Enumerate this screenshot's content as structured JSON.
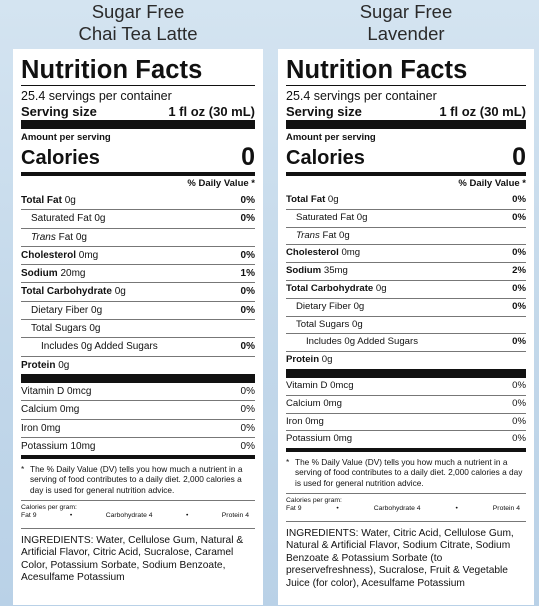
{
  "labels": [
    {
      "product_name": "Sugar Free\nChai Tea Latte",
      "title": "Nutrition Facts",
      "servings": "25.4 servings per container",
      "serving_size_label": "Serving size",
      "serving_size_value": "1 fl oz (30 mL)",
      "amount_per_serving": "Amount per serving",
      "calories_label": "Calories",
      "calories_value": "0",
      "dv_header": "% Daily Value *",
      "nutrients": [
        {
          "b": "Total Fat",
          "r": " 0g",
          "pct": "0%",
          "indent": 0
        },
        {
          "b": "",
          "r": "Saturated Fat 0g",
          "pct": "0%",
          "indent": 1
        },
        {
          "i": "Trans",
          "r": " Fat 0g",
          "pct": "",
          "indent": 1
        },
        {
          "b": "Cholesterol",
          "r": " 0mg",
          "pct": "0%",
          "indent": 0
        },
        {
          "b": "Sodium",
          "r": " 20mg",
          "pct": "1%",
          "indent": 0
        },
        {
          "b": "Total Carbohydrate",
          "r": " 0g",
          "pct": "0%",
          "indent": 0
        },
        {
          "b": "",
          "r": "Dietary Fiber 0g",
          "pct": "0%",
          "indent": 1
        },
        {
          "b": "",
          "r": "Total Sugars 0g",
          "pct": "",
          "indent": 1
        },
        {
          "b": "",
          "r": "Includes 0g Added Sugars",
          "pct": "0%",
          "indent": 2
        },
        {
          "b": "Protein",
          "r": " 0g",
          "pct": "",
          "indent": 0
        }
      ],
      "vitamins": [
        {
          "name": "Vitamin D 0mcg",
          "pct": "0%"
        },
        {
          "name": "Calcium 0mg",
          "pct": "0%"
        },
        {
          "name": "Iron 0mg",
          "pct": "0%"
        },
        {
          "name": "Potassium 10mg",
          "pct": "0%"
        }
      ],
      "footnote": "The % Daily Value (DV) tells you how much a nutrient in a serving of food contributes to a daily diet. 2,000 calories a day is used for general nutrition advice.",
      "calories_per_gram_label": "Calories per gram:",
      "calories_per_gram": [
        "Fat 9",
        "•",
        "Carbohydrate 4",
        "•",
        "Protein 4"
      ],
      "ingredients": "INGREDIENTS: Water, Cellulose Gum, Natural & Artificial Flavor, Citric Acid, Sucralose, Caramel Color, Potassium Sorbate, Sodium Benzoate, Acesulfame Potassium"
    },
    {
      "product_name": "Sugar Free\nLavender",
      "title": "Nutrition Facts",
      "servings": "25.4 servings per container",
      "serving_size_label": "Serving size",
      "serving_size_value": "1 fl oz (30 mL)",
      "amount_per_serving": "Amount per serving",
      "calories_label": "Calories",
      "calories_value": "0",
      "dv_header": "% Daily Value *",
      "nutrients": [
        {
          "b": "Total Fat",
          "r": " 0g",
          "pct": "0%",
          "indent": 0
        },
        {
          "b": "",
          "r": "Saturated Fat 0g",
          "pct": "0%",
          "indent": 1
        },
        {
          "i": "Trans",
          "r": " Fat 0g",
          "pct": "",
          "indent": 1
        },
        {
          "b": "Cholesterol",
          "r": " 0mg",
          "pct": "0%",
          "indent": 0
        },
        {
          "b": "Sodium",
          "r": " 35mg",
          "pct": "2%",
          "indent": 0
        },
        {
          "b": "Total Carbohydrate",
          "r": " 0g",
          "pct": "0%",
          "indent": 0
        },
        {
          "b": "",
          "r": "Dietary Fiber 0g",
          "pct": "0%",
          "indent": 1
        },
        {
          "b": "",
          "r": "Total Sugars 0g",
          "pct": "",
          "indent": 1
        },
        {
          "b": "",
          "r": "Includes 0g Added Sugars",
          "pct": "0%",
          "indent": 2
        },
        {
          "b": "Protein",
          "r": " 0g",
          "pct": "",
          "indent": 0
        }
      ],
      "vitamins": [
        {
          "name": "Vitamin D 0mcg",
          "pct": "0%"
        },
        {
          "name": "Calcium 0mg",
          "pct": "0%"
        },
        {
          "name": "Iron 0mg",
          "pct": "0%"
        },
        {
          "name": "Potassium 0mg",
          "pct": "0%"
        }
      ],
      "footnote": "The % Daily Value (DV) tells you how much a nutrient in a serving of food contributes to a daily diet. 2,000 calories a day is used for general nutrition advice.",
      "calories_per_gram_label": "Calories per gram:",
      "calories_per_gram": [
        "Fat 9",
        "•",
        "Carbohydrate 4",
        "•",
        "Protein 4"
      ],
      "ingredients": "INGREDIENTS: Water, Citric Acid, Cellulose Gum, Natural & Artificial Flavor, Sodium Citrate, Sodium Benzoate & Potassium Sorbate (to preservefreshness), Sucralose, Fruit & Vegetable Juice (for color), Acesulfame Potassium"
    }
  ]
}
